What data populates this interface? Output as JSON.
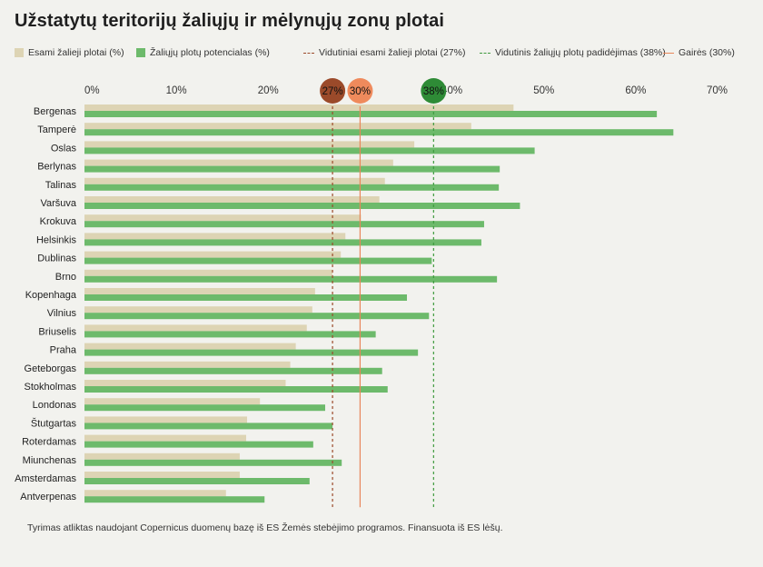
{
  "title": "Užstatytų teritorijų žaliųjų ir mėlynųjų zonų plotai",
  "legend": {
    "items": [
      {
        "label": "Esami žalieji plotai (%)",
        "kind": "swatch",
        "color": "#ddd4b4"
      },
      {
        "label": "Žaliųjų plotų potencialas (%)",
        "kind": "swatch",
        "color": "#6dba6b"
      },
      {
        "label": "Vidutiniai esami žalieji plotai (27%)",
        "kind": "dash",
        "color": "#9b4a2a"
      },
      {
        "label": "Vidutinis žaliųjų plotų padidėjimas (38%)",
        "kind": "dash",
        "color": "#3f9a3f"
      },
      {
        "label": "Gairės (30%)",
        "kind": "line",
        "color": "#e8875a"
      }
    ]
  },
  "footer": "Tyrimas atliktas naudojant Copernicus duomenų bazę iš ES Žemės stebėjimo programos. Finansuota iš ES lėšų.",
  "chart_data": {
    "type": "bar",
    "orientation": "horizontal",
    "xlim": [
      0,
      70
    ],
    "xticks": [
      0,
      10,
      20,
      30,
      40,
      50,
      60,
      70
    ],
    "xtick_labels": [
      "0%",
      "10%",
      "20%",
      "30%",
      "40%",
      "50%",
      "60%",
      "70%"
    ],
    "categories": [
      "Bergenas",
      "Tamperė",
      "Oslas",
      "Berlynas",
      "Talinas",
      "Varšuva",
      "Krokuva",
      "Helsinkis",
      "Dublinas",
      "Brno",
      "Kopenhaga",
      "Vilnius",
      "Briuselis",
      "Praha",
      "Geteborgas",
      "Stokholmas",
      "Londonas",
      "Štutgartas",
      "Roterdamas",
      "Miunchenas",
      "Amsterdamas",
      "Antverpenas"
    ],
    "series": [
      {
        "name": "Esami žalieji plotai (%)",
        "color": "#ddd4b4",
        "values": [
          46.7,
          42.1,
          35.9,
          33.6,
          32.7,
          32.1,
          30.1,
          28.4,
          27.9,
          27.0,
          25.1,
          24.8,
          24.2,
          23.0,
          22.4,
          21.9,
          19.1,
          17.7,
          17.6,
          16.9,
          16.9,
          15.4
        ]
      },
      {
        "name": "Žaliųjų plotų potencialas (%)",
        "color": "#6dba6b",
        "values": [
          62.3,
          64.1,
          49.0,
          45.2,
          45.1,
          47.4,
          43.5,
          43.2,
          37.8,
          44.9,
          35.1,
          37.5,
          31.7,
          36.3,
          32.4,
          33.0,
          26.2,
          27.0,
          24.9,
          28.0,
          24.5,
          19.6
        ]
      }
    ],
    "reference_lines": [
      {
        "value": 27,
        "label": "27%",
        "style": "dashed",
        "line_color": "#9b4a2a",
        "marker_color": "#9b4a2a"
      },
      {
        "value": 30,
        "label": "30%",
        "style": "solid",
        "line_color": "#e8875a",
        "marker_color": "#ef8a5c"
      },
      {
        "value": 38,
        "label": "38%",
        "style": "dashed",
        "line_color": "#3f9a3f",
        "marker_color": "#2e8b36"
      }
    ],
    "grid": false,
    "legend_position": "top"
  }
}
